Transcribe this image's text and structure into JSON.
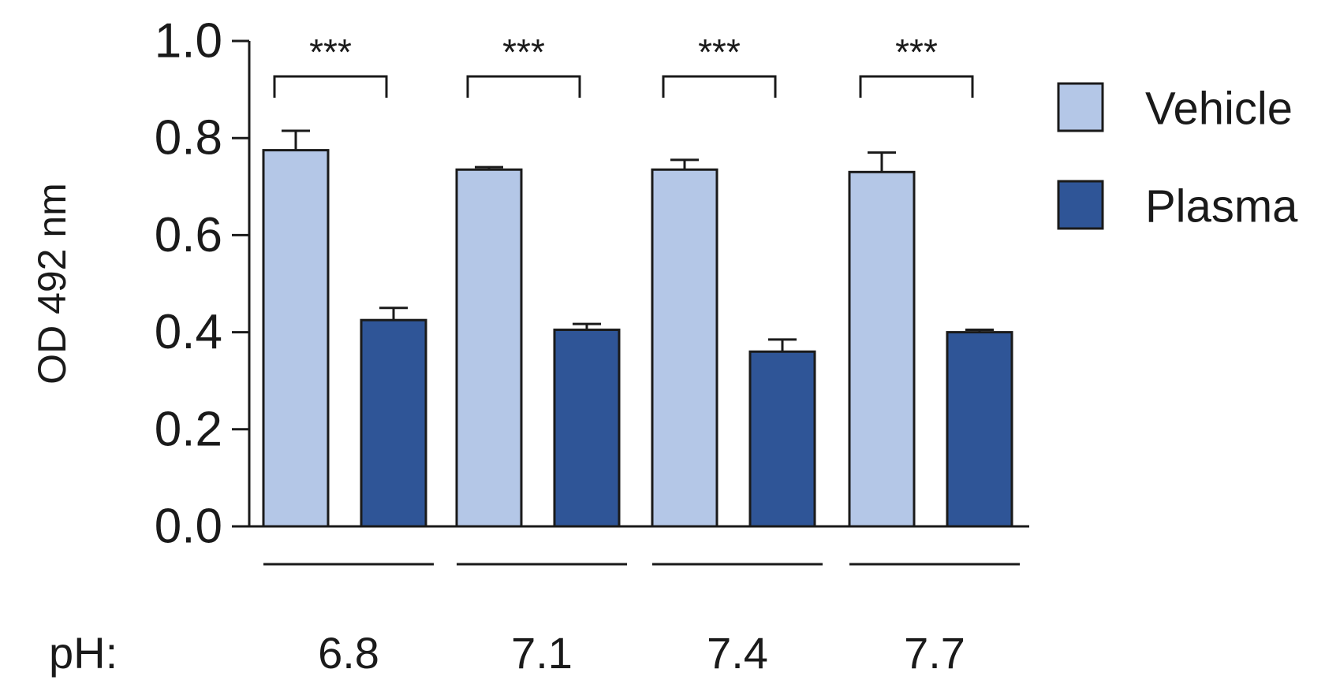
{
  "chart_data": {
    "type": "bar",
    "title": "",
    "ylabel": "OD 492 nm",
    "xlabel": "",
    "x_prefix": "pH:",
    "ylim": [
      0.0,
      1.0
    ],
    "yticks": [
      "0.0",
      "0.2",
      "0.4",
      "0.6",
      "0.8",
      "1.0"
    ],
    "categories": [
      "6.8",
      "7.1",
      "7.4",
      "7.7"
    ],
    "series": [
      {
        "name": "Vehicle",
        "color": "#b4c7e7",
        "values": [
          0.775,
          0.735,
          0.735,
          0.73
        ],
        "errors": [
          0.04,
          0.005,
          0.02,
          0.04
        ]
      },
      {
        "name": "Plasma",
        "color": "#2f5597",
        "values": [
          0.425,
          0.405,
          0.36,
          0.4
        ],
        "errors": [
          0.025,
          0.012,
          0.025,
          0.005
        ]
      }
    ],
    "significance": [
      "***",
      "***",
      "***",
      "***"
    ],
    "legend_position": "right",
    "grid": false,
    "error_bars": "upper"
  }
}
